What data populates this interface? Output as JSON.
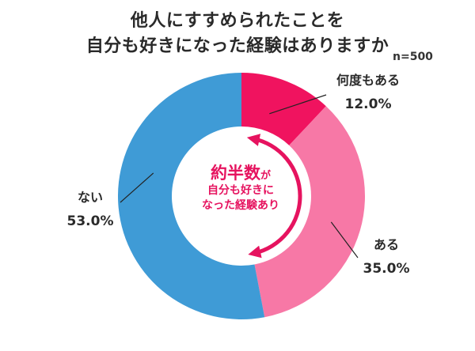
{
  "title_line1": "他人にすすめられたことを",
  "title_line2": "自分も好きになった経験はありますか",
  "sample_size": "n=500",
  "center": {
    "main": "約半数",
    "particle": "が",
    "line2": "自分も好きに",
    "line3": "なった経験あり"
  },
  "colors": {
    "many_times": "#f0135f",
    "yes": "#f778a6",
    "no": "#3f9bd6",
    "accent": "#e6135f"
  },
  "chart_data": {
    "type": "pie",
    "variant": "donut",
    "categories": [
      "何度もある",
      "ある",
      "ない"
    ],
    "values": [
      12.0,
      35.0,
      53.0
    ],
    "value_labels": [
      "12.0%",
      "35.0%",
      "53.0%"
    ],
    "title": "他人にすすめられたことを自分も好きになった経験はありますか",
    "start": "12 o'clock",
    "direction": "clockwise"
  }
}
